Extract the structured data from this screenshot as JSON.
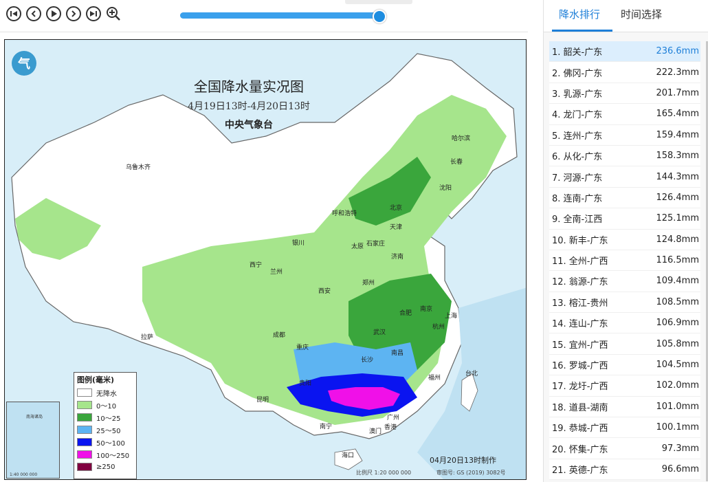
{
  "controls": {
    "first": "first-icon",
    "prev": "prev-icon",
    "play": "play-icon",
    "next": "next-icon",
    "last": "last-icon",
    "zoom": "zoom-in-icon"
  },
  "timeline": {
    "progress": 0.96
  },
  "map": {
    "title": "全国降水量实况图",
    "subtitle": "4月19日13时-4月20日13时",
    "org": "中央气象台",
    "cities": [
      "乌鲁木齐",
      "哈尔滨",
      "长春",
      "沈阳",
      "呼和浩特",
      "北京",
      "天津",
      "银川",
      "太原",
      "石家庄",
      "西宁",
      "兰州",
      "济南",
      "郑州",
      "西安",
      "南京",
      "合肥",
      "上海",
      "武汉",
      "杭州",
      "成都",
      "拉萨",
      "重庆",
      "长沙",
      "南昌",
      "贵阳",
      "福州",
      "台北",
      "昆明",
      "广州",
      "南宁",
      "澳门",
      "香港",
      "海口"
    ],
    "legend": {
      "title": "图例(毫米)",
      "items": [
        {
          "label": "无降水",
          "color": "#ffffff"
        },
        {
          "label": "0～10",
          "color": "#a6e58c"
        },
        {
          "label": "10～25",
          "color": "#3aa63c"
        },
        {
          "label": "25～50",
          "color": "#5db4f2"
        },
        {
          "label": "50～100",
          "color": "#0a14f0"
        },
        {
          "label": "100～250",
          "color": "#f010e8"
        },
        {
          "label": "≥250",
          "color": "#800040"
        }
      ]
    },
    "inset": {
      "label1": "南海诸岛",
      "label2": "1:40 000 000"
    },
    "footer": {
      "date": "04月20日13时制作",
      "scale": "比例尺 1:20 000 000",
      "code": "审图号: GS (2019) 3082号"
    }
  },
  "side": {
    "tabs": [
      "降水排行",
      "时间选择"
    ],
    "ranking": [
      {
        "name": "1. 韶关-广东",
        "value": "236.6mm"
      },
      {
        "name": "2. 佛冈-广东",
        "value": "222.3mm"
      },
      {
        "name": "3. 乳源-广东",
        "value": "201.7mm"
      },
      {
        "name": "4. 龙门-广东",
        "value": "165.4mm"
      },
      {
        "name": "5. 连州-广东",
        "value": "159.4mm"
      },
      {
        "name": "6. 从化-广东",
        "value": "158.3mm"
      },
      {
        "name": "7. 河源-广东",
        "value": "144.3mm"
      },
      {
        "name": "8. 连南-广东",
        "value": "126.4mm"
      },
      {
        "name": "9. 全南-江西",
        "value": "125.1mm"
      },
      {
        "name": "10. 新丰-广东",
        "value": "124.8mm"
      },
      {
        "name": "11. 全州-广西",
        "value": "116.5mm"
      },
      {
        "name": "12. 翁源-广东",
        "value": "109.4mm"
      },
      {
        "name": "13. 榕江-贵州",
        "value": "108.5mm"
      },
      {
        "name": "14. 连山-广东",
        "value": "106.9mm"
      },
      {
        "name": "15. 宜州-广西",
        "value": "105.8mm"
      },
      {
        "name": "16. 罗城-广西",
        "value": "104.5mm"
      },
      {
        "name": "17. 龙圩-广西",
        "value": "102.0mm"
      },
      {
        "name": "18. 道县-湖南",
        "value": "101.0mm"
      },
      {
        "name": "19. 恭城-广西",
        "value": "100.1mm"
      },
      {
        "name": "20. 怀集-广东",
        "value": "97.3mm"
      },
      {
        "name": "21. 英德-广东",
        "value": "96.6mm"
      }
    ]
  }
}
